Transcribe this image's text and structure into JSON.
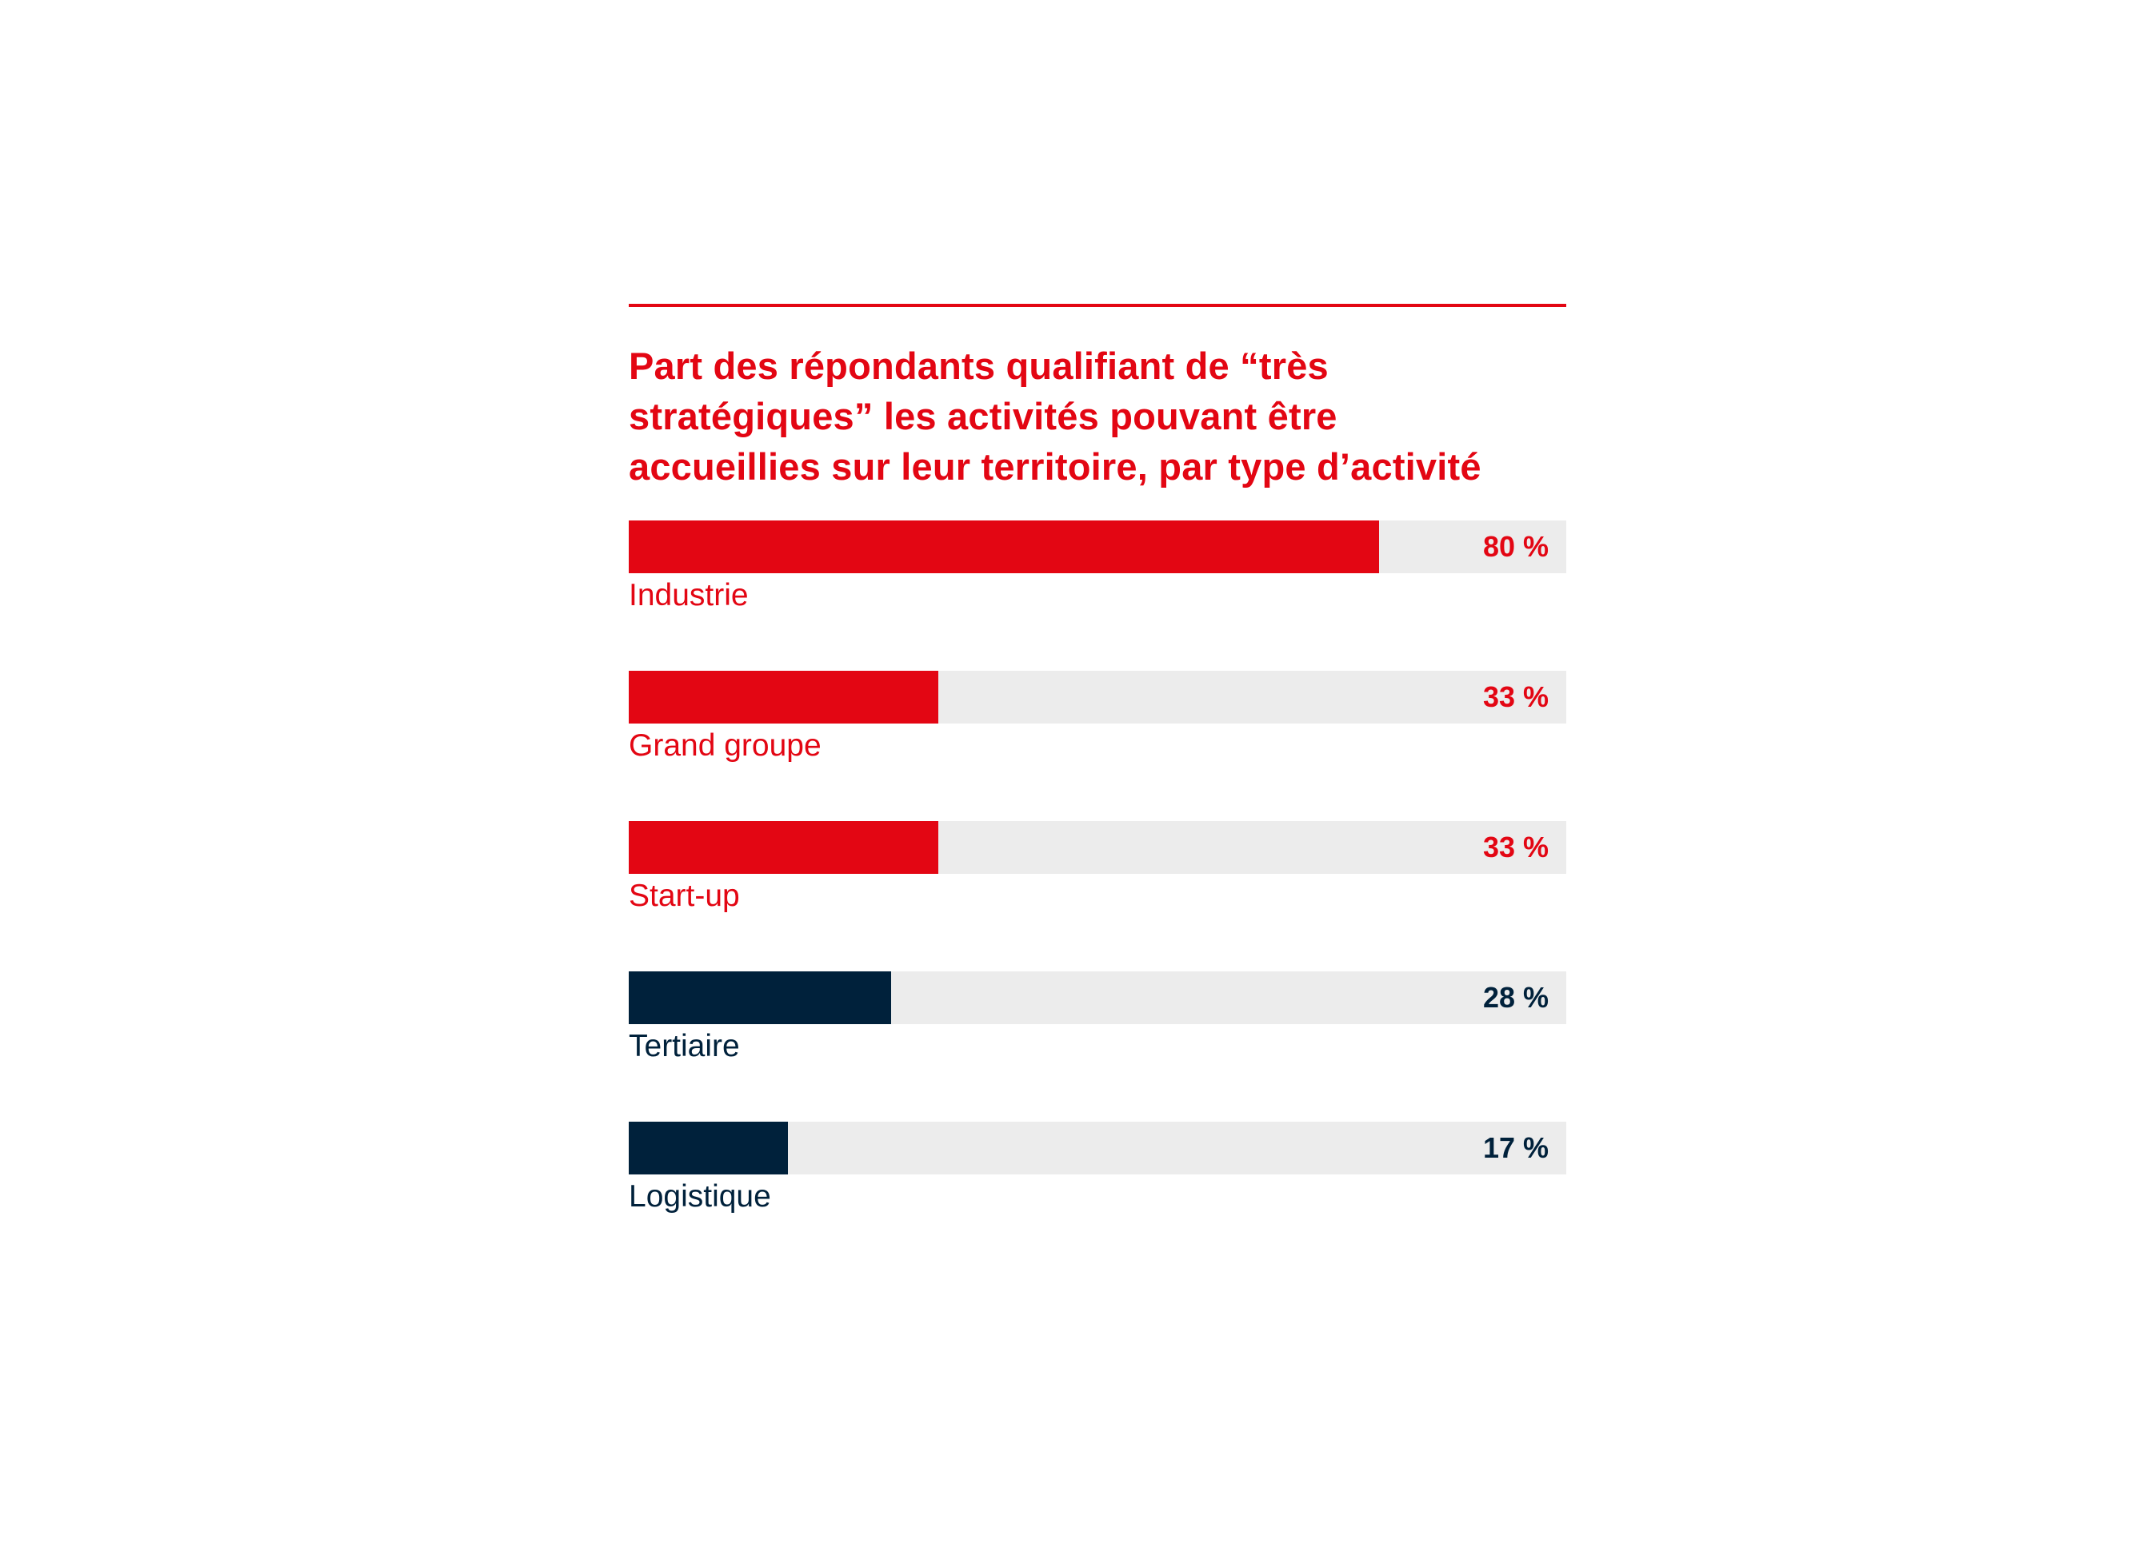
{
  "colors": {
    "red": "#e30613",
    "navy": "#00213b",
    "track": "#ececec"
  },
  "chart_data": {
    "type": "bar",
    "orientation": "horizontal",
    "title": "Part des répondants qualifiant de “très stratégiques” les activités pouvant être accueillies sur leur territoire, par type d’activité",
    "title_lines": [
      "Part des répondants qualifiant de “très",
      "stratégiques” les activités pouvant être",
      "accueillies sur leur territoire, par type d’activité"
    ],
    "xlim": [
      0,
      100
    ],
    "categories": [
      "Industrie",
      "Grand groupe",
      "Start-up",
      "Tertiaire",
      "Logistique"
    ],
    "values": [
      80,
      33,
      33,
      28,
      17
    ],
    "value_labels": [
      "80 %",
      "33 %",
      "33 %",
      "28 %",
      "17 %"
    ],
    "bar_colors": [
      "#e30613",
      "#e30613",
      "#e30613",
      "#00213b",
      "#00213b"
    ]
  }
}
